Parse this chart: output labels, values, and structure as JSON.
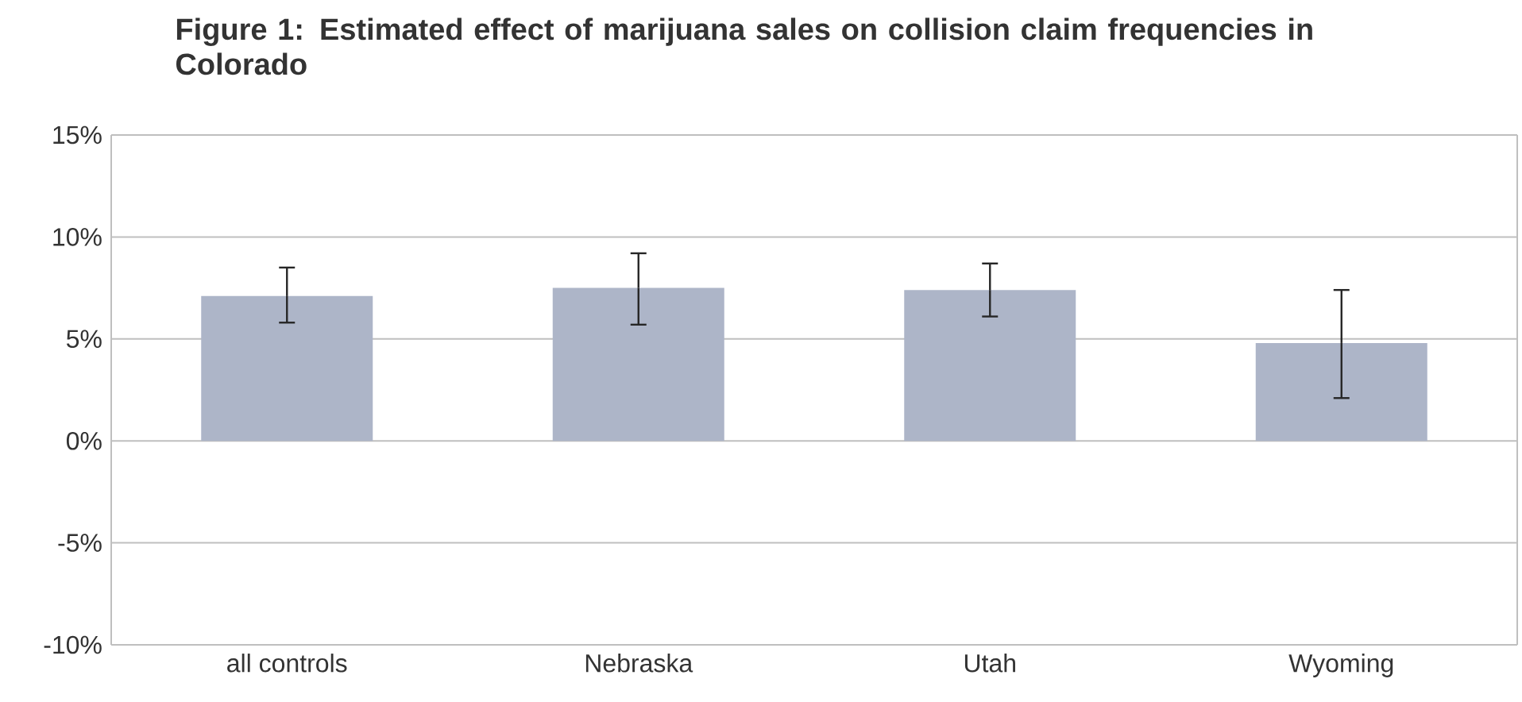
{
  "chart_data": {
    "type": "bar",
    "title": "Figure 1: Estimated effect of marijuana sales on collision claim frequencies in Colorado",
    "categories": [
      "all controls",
      "Nebraska",
      "Utah",
      "Wyoming"
    ],
    "values": [
      7.1,
      7.5,
      7.4,
      4.8
    ],
    "errors": [
      [
        5.8,
        8.5
      ],
      [
        5.7,
        9.2
      ],
      [
        6.1,
        8.7
      ],
      [
        2.1,
        7.4
      ]
    ],
    "color": "#adb5c8",
    "ylim": [
      -10,
      15
    ],
    "yticks": [
      {
        "value": -10,
        "label": "-10%"
      },
      {
        "value": -5,
        "label": "-5%"
      },
      {
        "value": 0,
        "label": "0%"
      },
      {
        "value": 5,
        "label": "5%"
      },
      {
        "value": 10,
        "label": "10%"
      },
      {
        "value": 15,
        "label": "15%"
      }
    ],
    "grid": "y"
  }
}
